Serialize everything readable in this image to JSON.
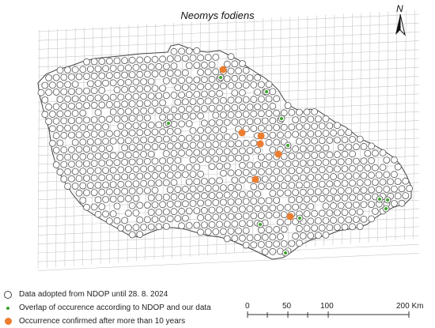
{
  "map": {
    "title": "Neomys fodiens",
    "north_label": "N",
    "colors": {
      "grid": "#c7c7c7",
      "outline": "#444444",
      "open_circle": "#555555",
      "green": "#3aa32a",
      "orange": "#ec7d2f"
    }
  },
  "legend": {
    "items": [
      {
        "symbol": "open-circle",
        "label": "Data adopted from NDOP until 28. 8. 2024"
      },
      {
        "symbol": "green-dot",
        "label": "Overlap of occurence according to NDOP and our data"
      },
      {
        "symbol": "orange-dot",
        "label": "Occurrence confirmed after more than 10 years"
      }
    ]
  },
  "scale": {
    "ticks": [
      "0",
      "50",
      "100",
      "200 Km"
    ]
  }
}
